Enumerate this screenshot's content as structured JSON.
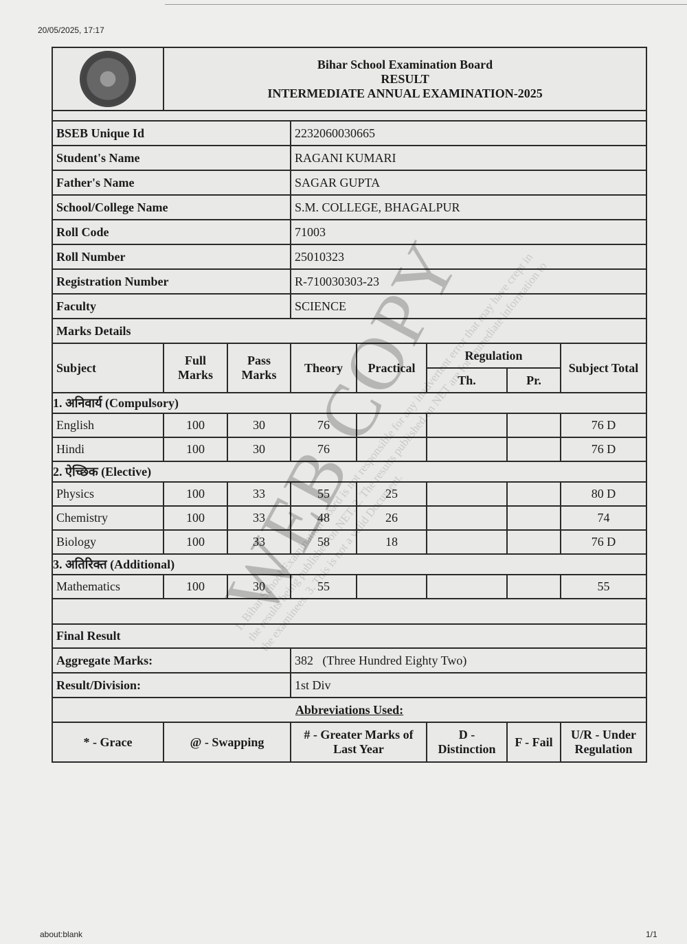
{
  "browser": {
    "timestamp": "20/05/2025, 17:17",
    "url": "about:blank",
    "page_count": "1/1"
  },
  "header": {
    "board": "Bihar School Examination Board",
    "doc_type": "RESULT",
    "exam": "INTERMEDIATE ANNUAL EXAMINATION-2025"
  },
  "student": [
    {
      "label": "BSEB Unique Id",
      "value": "2232060030665"
    },
    {
      "label": "Student's Name",
      "value": "RAGANI KUMARI"
    },
    {
      "label": "Father's Name",
      "value": "SAGAR GUPTA"
    },
    {
      "label": "School/College Name",
      "value": "S.M. COLLEGE, BHAGALPUR"
    },
    {
      "label": "Roll Code",
      "value": "71003"
    },
    {
      "label": "Roll Number",
      "value": "25010323"
    },
    {
      "label": "Registration Number",
      "value": "R-710030303-23"
    },
    {
      "label": "Faculty",
      "value": "SCIENCE"
    }
  ],
  "marks": {
    "title": "Marks Details",
    "headers": {
      "subject": "Subject",
      "full": "Full Marks",
      "pass": "Pass Marks",
      "theory": "Theory",
      "practical": "Practical",
      "regulation": "Regulation",
      "reg_th": "Th.",
      "reg_pr": "Pr.",
      "total": "Subject Total"
    },
    "sections": [
      {
        "title": "1. अनिवार्य (Compulsory)",
        "rows": [
          {
            "subject": "English",
            "full": "100",
            "pass": "30",
            "theory": "76",
            "practical": "",
            "th": "",
            "pr": "",
            "total": "76 D"
          },
          {
            "subject": "Hindi",
            "full": "100",
            "pass": "30",
            "theory": "76",
            "practical": "",
            "th": "",
            "pr": "",
            "total": "76 D"
          }
        ]
      },
      {
        "title": "2. ऐच्छिक (Elective)",
        "rows": [
          {
            "subject": "Physics",
            "full": "100",
            "pass": "33",
            "theory": "55",
            "practical": "25",
            "th": "",
            "pr": "",
            "total": "80 D"
          },
          {
            "subject": "Chemistry",
            "full": "100",
            "pass": "33",
            "theory": "48",
            "practical": "26",
            "th": "",
            "pr": "",
            "total": "74"
          },
          {
            "subject": "Biology",
            "full": "100",
            "pass": "33",
            "theory": "58",
            "practical": "18",
            "th": "",
            "pr": "",
            "total": "76 D"
          }
        ]
      },
      {
        "title": "3. अतिरिक्त (Additional)",
        "rows": [
          {
            "subject": "Mathematics",
            "full": "100",
            "pass": "30",
            "theory": "55",
            "practical": "",
            "th": "",
            "pr": "",
            "total": "55"
          }
        ]
      }
    ]
  },
  "final": {
    "title": "Final Result",
    "aggregate_label": "Aggregate Marks:",
    "aggregate_value": "382",
    "aggregate_words": "(Three Hundred Eighty Two)",
    "division_label": "Result/Division:",
    "division_value": "1st Div"
  },
  "abbreviations": {
    "title": "Abbreviations Used:",
    "items": [
      "* - Grace",
      "@ - Swapping",
      "# - Greater Marks of Last Year",
      "D - Distinction",
      "F - Fail",
      "U/R - Under Regulation"
    ]
  },
  "watermark": {
    "main": "WEB COPY",
    "disclaimer": "1. Bihar School Examination Board is not responsible for any inadvertent error that may have crept in the results being published on NET. 2. The results published on NET are for immediate information to the examinees. 3. This is not a valid Document."
  }
}
